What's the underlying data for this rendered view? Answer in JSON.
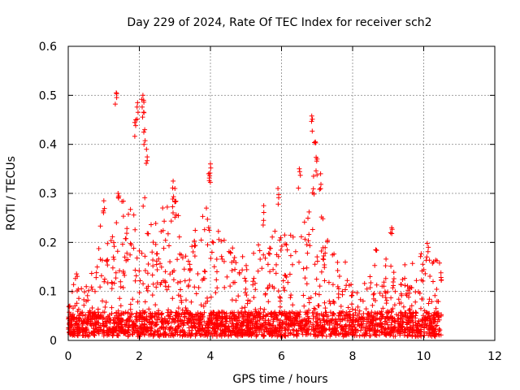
{
  "chart_data": {
    "type": "scatter",
    "title": "Day 229 of 2024, Rate Of TEC Index for receiver sch2",
    "xlabel": "GPS time / hours",
    "ylabel": "ROTI / TECUs",
    "xlim": [
      0,
      12
    ],
    "ylim": [
      0,
      0.6
    ],
    "x_ticks": [
      "0",
      "2",
      "4",
      "6",
      "8",
      "10",
      "12"
    ],
    "y_ticks": [
      "0",
      "0.1",
      "0.2",
      "0.3",
      "0.4",
      "0.5",
      "0.6"
    ],
    "grid": true,
    "marker": "+",
    "color": "#ff0000",
    "data_range_x": [
      0,
      10.5
    ],
    "peaks": [
      {
        "x": 1.35,
        "y": 0.505
      },
      {
        "x": 2.1,
        "y": 0.5
      },
      {
        "x": 2.12,
        "y": 0.49
      },
      {
        "x": 1.95,
        "y": 0.485
      },
      {
        "x": 1.9,
        "y": 0.45
      },
      {
        "x": 2.15,
        "y": 0.43
      },
      {
        "x": 2.2,
        "y": 0.39
      },
      {
        "x": 6.85,
        "y": 0.458
      },
      {
        "x": 6.95,
        "y": 0.405
      },
      {
        "x": 7.0,
        "y": 0.37
      },
      {
        "x": 4.0,
        "y": 0.36
      },
      {
        "x": 3.95,
        "y": 0.34
      },
      {
        "x": 2.95,
        "y": 0.325
      },
      {
        "x": 6.5,
        "y": 0.35
      },
      {
        "x": 6.9,
        "y": 0.335
      },
      {
        "x": 7.1,
        "y": 0.34
      },
      {
        "x": 5.9,
        "y": 0.31
      },
      {
        "x": 1.4,
        "y": 0.3
      },
      {
        "x": 1.0,
        "y": 0.285
      },
      {
        "x": 3.0,
        "y": 0.31
      },
      {
        "x": 5.5,
        "y": 0.275
      },
      {
        "x": 8.65,
        "y": 0.185
      },
      {
        "x": 9.1,
        "y": 0.23
      },
      {
        "x": 10.1,
        "y": 0.198
      }
    ],
    "envelope": [
      {
        "x": 0.0,
        "y": 0.07
      },
      {
        "x": 0.3,
        "y": 0.15
      },
      {
        "x": 0.6,
        "y": 0.1
      },
      {
        "x": 0.9,
        "y": 0.24
      },
      {
        "x": 1.2,
        "y": 0.22
      },
      {
        "x": 1.5,
        "y": 0.29
      },
      {
        "x": 1.8,
        "y": 0.28
      },
      {
        "x": 2.1,
        "y": 0.3
      },
      {
        "x": 2.4,
        "y": 0.23
      },
      {
        "x": 2.7,
        "y": 0.27
      },
      {
        "x": 3.0,
        "y": 0.29
      },
      {
        "x": 3.3,
        "y": 0.17
      },
      {
        "x": 3.6,
        "y": 0.24
      },
      {
        "x": 3.9,
        "y": 0.28
      },
      {
        "x": 4.2,
        "y": 0.23
      },
      {
        "x": 4.5,
        "y": 0.19
      },
      {
        "x": 4.8,
        "y": 0.19
      },
      {
        "x": 5.1,
        "y": 0.15
      },
      {
        "x": 5.4,
        "y": 0.2
      },
      {
        "x": 5.7,
        "y": 0.2
      },
      {
        "x": 6.0,
        "y": 0.24
      },
      {
        "x": 6.3,
        "y": 0.2
      },
      {
        "x": 6.6,
        "y": 0.24
      },
      {
        "x": 6.9,
        "y": 0.27
      },
      {
        "x": 7.2,
        "y": 0.26
      },
      {
        "x": 7.5,
        "y": 0.16
      },
      {
        "x": 7.8,
        "y": 0.15
      },
      {
        "x": 8.1,
        "y": 0.12
      },
      {
        "x": 8.4,
        "y": 0.12
      },
      {
        "x": 8.7,
        "y": 0.13
      },
      {
        "x": 9.0,
        "y": 0.17
      },
      {
        "x": 9.3,
        "y": 0.15
      },
      {
        "x": 9.6,
        "y": 0.15
      },
      {
        "x": 9.9,
        "y": 0.17
      },
      {
        "x": 10.2,
        "y": 0.16
      },
      {
        "x": 10.5,
        "y": 0.16
      }
    ]
  }
}
